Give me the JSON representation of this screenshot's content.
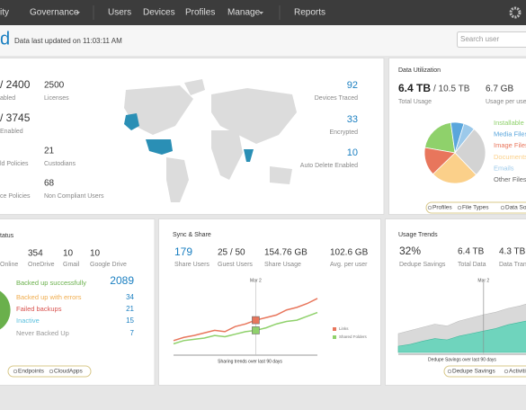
{
  "nav": {
    "items": [
      "ity",
      "Governance",
      "Users",
      "Devices",
      "Profiles",
      "Manage",
      "Reports"
    ]
  },
  "header": {
    "title": "d",
    "updated": "Data last updated on 11:03:11 AM",
    "search_placeholder": "Search user"
  },
  "overview": {
    "left": [
      {
        "value": "/ 2400",
        "label": "abled"
      },
      {
        "value": "/ 3745",
        "label": "Enabled"
      },
      {
        "label": "ld Policies"
      },
      {
        "label": "ce Policies"
      }
    ],
    "middle": [
      {
        "value": "2500",
        "label": "Licenses"
      },
      {
        "value": "21",
        "label": "Custodians"
      },
      {
        "value": "68",
        "label": "Non Compliant Users"
      }
    ],
    "right": [
      {
        "value": "92",
        "label": "Devices Traced"
      },
      {
        "value": "33",
        "label": "Encrypted"
      },
      {
        "value": "10",
        "label": "Auto Delete Enabled"
      }
    ]
  },
  "data_utilization": {
    "title": "Data Utilization",
    "total": "6.4 TB",
    "capacity": "/ 10.5 TB",
    "total_label": "Total Usage",
    "per_user": "6.7 GB",
    "per_user_label": "Usage per user",
    "pie": {
      "type": "pie",
      "categories": [
        "Installable",
        "Media Files",
        "Image Files",
        "Documents",
        "Emails",
        "Other Files"
      ],
      "colors": [
        "#8fd16b",
        "#5aa6dc",
        "#e8765c",
        "#fbd08a",
        "#9cc9ea",
        "#d3d3d3"
      ],
      "values": [
        20,
        7,
        15,
        25,
        6,
        27
      ]
    },
    "tabs": [
      "Profiles",
      "File Types",
      "Data Sou"
    ]
  },
  "status": {
    "title": "tatus",
    "online_label": "Online",
    "stats": [
      {
        "value": "354",
        "label": "OneDrive"
      },
      {
        "value": "10",
        "label": "Gmail"
      },
      {
        "value": "10",
        "label": "Google Drive"
      }
    ],
    "rows": [
      {
        "label": "Backed up successfully",
        "value": 2089,
        "color": "#6ab04c"
      },
      {
        "label": "Backed up with errors",
        "value": 34,
        "color": "#f0ad4e"
      },
      {
        "label": "Failed backups",
        "value": 21,
        "color": "#d9534f"
      },
      {
        "label": "Inactive",
        "value": 15,
        "color": "#5bc0de"
      },
      {
        "label": "Never Backed Up",
        "value": 7,
        "color": "#999999"
      }
    ],
    "tabs": [
      "Endpoints",
      "CloudApps"
    ]
  },
  "sync_share": {
    "title": "Sync & Share",
    "stats": [
      {
        "value": "179",
        "label": "Share Users"
      },
      {
        "value": "25 / 50",
        "label": "Guest Users"
      },
      {
        "value": "154.76 GB",
        "label": "Share Usage"
      },
      {
        "value": "102.6 GB",
        "label": "Avg. per user"
      }
    ],
    "chart": {
      "type": "line",
      "marker_label": "Mar 2",
      "caption": "Sharing trends over last 90 days",
      "ylim": [
        0,
        10
      ],
      "series": [
        {
          "name": "Links",
          "color": "#e8765c",
          "values": [
            2,
            2.5,
            2.8,
            3.2,
            3.6,
            3.4,
            4.2,
            4.6,
            5.2,
            5.6,
            6,
            6.8,
            7.2,
            7.8,
            8.6
          ]
        },
        {
          "name": "Shared Folders",
          "color": "#8fd16b",
          "values": [
            1.5,
            2,
            2.2,
            2.4,
            2.8,
            2.6,
            3,
            3.4,
            3.6,
            4,
            4.6,
            5,
            5.2,
            5.8,
            6.4
          ]
        }
      ]
    }
  },
  "usage_trends": {
    "title": "Usage Trends",
    "stats": [
      {
        "value": "32%",
        "label": "Dedupe Savings"
      },
      {
        "value": "6.4 TB",
        "label": "Total Data"
      },
      {
        "value": "4.3 TB",
        "label": "Data Transfer"
      }
    ],
    "chart": {
      "type": "area",
      "marker_label": "Mar 2",
      "caption": "Dedupe Savings over last 90 days",
      "ylim": [
        0,
        10
      ],
      "series": [
        {
          "color": "#d9d9d9",
          "values": [
            3,
            3.5,
            4,
            4.5,
            4.2,
            5,
            5.5,
            6,
            6.4,
            7,
            7.4,
            8
          ]
        },
        {
          "color": "#6fd4bd",
          "values": [
            1,
            1.3,
            1.8,
            2.2,
            2,
            2.6,
            3,
            3.4,
            3.8,
            4.4,
            4.8,
            5.2
          ]
        }
      ]
    },
    "tabs": [
      "Dedupe Savings",
      "Activities"
    ]
  }
}
